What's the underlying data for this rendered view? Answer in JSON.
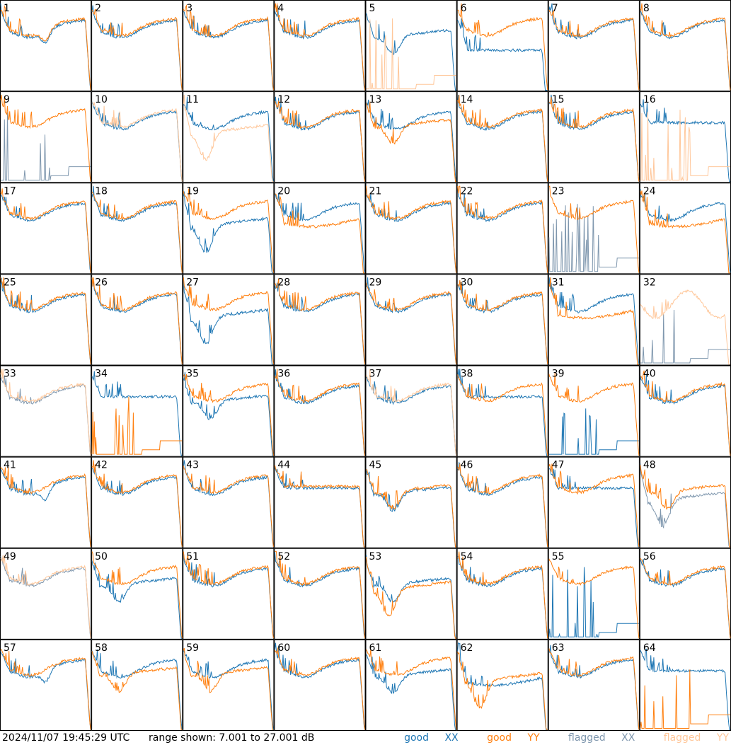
{
  "chart_data": {
    "type": "line",
    "layout": "small-multiples-8x8",
    "panels": [
      {
        "label": "1",
        "xx": "good",
        "yy": "good",
        "xx_shape": "dip",
        "yy_shape": "dip"
      },
      {
        "label": "2",
        "xx": "good",
        "yy": "good",
        "xx_shape": "normal",
        "yy_shape": "normal"
      },
      {
        "label": "3",
        "xx": "good",
        "yy": "good",
        "xx_shape": "normal",
        "yy_shape": "normal"
      },
      {
        "label": "4",
        "xx": "good",
        "yy": "good",
        "xx_shape": "normal",
        "yy_shape": "normal"
      },
      {
        "label": "5",
        "xx": "good",
        "yy": "flagged",
        "xx_shape": "valley",
        "yy_shape": "dead"
      },
      {
        "label": "6",
        "xx": "good",
        "yy": "good",
        "xx_shape": "lowflat",
        "yy_shape": "normal"
      },
      {
        "label": "7",
        "xx": "good",
        "yy": "good",
        "xx_shape": "normal",
        "yy_shape": "normal"
      },
      {
        "label": "8",
        "xx": "good",
        "yy": "good",
        "xx_shape": "normal",
        "yy_shape": "normal"
      },
      {
        "label": "9",
        "xx": "flagged",
        "yy": "good",
        "xx_shape": "dead",
        "yy_shape": "normal"
      },
      {
        "label": "10",
        "xx": "good",
        "yy": "flagged",
        "xx_shape": "normal",
        "yy_shape": "normal"
      },
      {
        "label": "11",
        "xx": "good",
        "yy": "flagged",
        "xx_shape": "normal",
        "yy_shape": "valleydeep"
      },
      {
        "label": "12",
        "xx": "good",
        "yy": "good",
        "xx_shape": "normal",
        "yy_shape": "normal"
      },
      {
        "label": "13",
        "xx": "good",
        "yy": "good",
        "xx_shape": "normal",
        "yy_shape": "valley"
      },
      {
        "label": "14",
        "xx": "good",
        "yy": "good",
        "xx_shape": "normal",
        "yy_shape": "normal"
      },
      {
        "label": "15",
        "xx": "good",
        "yy": "good",
        "xx_shape": "normal",
        "yy_shape": "normal"
      },
      {
        "label": "16",
        "xx": "good",
        "yy": "flagged",
        "xx_shape": "flat",
        "yy_shape": "dead"
      },
      {
        "label": "17",
        "xx": "good",
        "yy": "good",
        "xx_shape": "normal",
        "yy_shape": "normal"
      },
      {
        "label": "18",
        "xx": "good",
        "yy": "good",
        "xx_shape": "normal",
        "yy_shape": "normal"
      },
      {
        "label": "19",
        "xx": "good",
        "yy": "good",
        "xx_shape": "valleydeep",
        "yy_shape": "normal"
      },
      {
        "label": "20",
        "xx": "good",
        "yy": "good",
        "xx_shape": "normal",
        "yy_shape": "low"
      },
      {
        "label": "21",
        "xx": "good",
        "yy": "good",
        "xx_shape": "normal",
        "yy_shape": "normal"
      },
      {
        "label": "22",
        "xx": "good",
        "yy": "good",
        "xx_shape": "normal",
        "yy_shape": "normal"
      },
      {
        "label": "23",
        "xx": "flagged",
        "yy": "good",
        "xx_shape": "dead",
        "yy_shape": "normal"
      },
      {
        "label": "24",
        "xx": "good",
        "yy": "good",
        "xx_shape": "normal",
        "yy_shape": "low"
      },
      {
        "label": "25",
        "xx": "good",
        "yy": "good",
        "xx_shape": "normal",
        "yy_shape": "normal"
      },
      {
        "label": "26",
        "xx": "good",
        "yy": "good",
        "xx_shape": "normal",
        "yy_shape": "normal"
      },
      {
        "label": "27",
        "xx": "good",
        "yy": "good",
        "xx_shape": "valleydeep",
        "yy_shape": "normal"
      },
      {
        "label": "28",
        "xx": "good",
        "yy": "good",
        "xx_shape": "normal",
        "yy_shape": "normal"
      },
      {
        "label": "29",
        "xx": "good",
        "yy": "good",
        "xx_shape": "normal",
        "yy_shape": "normal"
      },
      {
        "label": "30",
        "xx": "good",
        "yy": "good",
        "xx_shape": "normal",
        "yy_shape": "normal"
      },
      {
        "label": "31",
        "xx": "good",
        "yy": "good",
        "xx_shape": "normal",
        "yy_shape": "low"
      },
      {
        "label": "32",
        "xx": "flagged",
        "yy": "flagged",
        "xx_shape": "dead",
        "yy_shape": "noisy"
      },
      {
        "label": "33",
        "xx": "flagged",
        "yy": "flagged",
        "xx_shape": "normal",
        "yy_shape": "normal"
      },
      {
        "label": "34",
        "xx": "good",
        "yy": "good",
        "xx_shape": "flat",
        "yy_shape": "dead"
      },
      {
        "label": "35",
        "xx": "good",
        "yy": "good",
        "xx_shape": "valley",
        "yy_shape": "normal"
      },
      {
        "label": "36",
        "xx": "good",
        "yy": "good",
        "xx_shape": "normal",
        "yy_shape": "normal"
      },
      {
        "label": "37",
        "xx": "good",
        "yy": "flagged",
        "xx_shape": "normal",
        "yy_shape": "normal"
      },
      {
        "label": "38",
        "xx": "good",
        "yy": "good",
        "xx_shape": "flat",
        "yy_shape": "normal"
      },
      {
        "label": "39",
        "xx": "good",
        "yy": "good",
        "xx_shape": "dead",
        "yy_shape": "normal"
      },
      {
        "label": "40",
        "xx": "good",
        "yy": "good",
        "xx_shape": "normal",
        "yy_shape": "normal"
      },
      {
        "label": "41",
        "xx": "good",
        "yy": "good",
        "xx_shape": "dip",
        "yy_shape": "normal"
      },
      {
        "label": "42",
        "xx": "good",
        "yy": "good",
        "xx_shape": "normal",
        "yy_shape": "normal"
      },
      {
        "label": "43",
        "xx": "good",
        "yy": "good",
        "xx_shape": "normal",
        "yy_shape": "normal"
      },
      {
        "label": "44",
        "xx": "good",
        "yy": "good",
        "xx_shape": "flat",
        "yy_shape": "flat"
      },
      {
        "label": "45",
        "xx": "good",
        "yy": "good",
        "xx_shape": "valley",
        "yy_shape": "valley"
      },
      {
        "label": "46",
        "xx": "good",
        "yy": "good",
        "xx_shape": "normal",
        "yy_shape": "normal"
      },
      {
        "label": "47",
        "xx": "good",
        "yy": "good",
        "xx_shape": "flat",
        "yy_shape": "normal"
      },
      {
        "label": "48",
        "xx": "flagged",
        "yy": "good",
        "xx_shape": "valleydeep",
        "yy_shape": "valley"
      },
      {
        "label": "49",
        "xx": "flagged",
        "yy": "flagged",
        "xx_shape": "normal",
        "yy_shape": "normal"
      },
      {
        "label": "50",
        "xx": "good",
        "yy": "good",
        "xx_shape": "valley",
        "yy_shape": "normal"
      },
      {
        "label": "51",
        "xx": "good",
        "yy": "good",
        "xx_shape": "normal",
        "yy_shape": "normal"
      },
      {
        "label": "52",
        "xx": "good",
        "yy": "good",
        "xx_shape": "normal",
        "yy_shape": "normal"
      },
      {
        "label": "53",
        "xx": "good",
        "yy": "good",
        "xx_shape": "valley",
        "yy_shape": "valleydeep"
      },
      {
        "label": "54",
        "xx": "good",
        "yy": "good",
        "xx_shape": "normal",
        "yy_shape": "normal"
      },
      {
        "label": "55",
        "xx": "good",
        "yy": "good",
        "xx_shape": "dead",
        "yy_shape": "normal"
      },
      {
        "label": "56",
        "xx": "good",
        "yy": "good",
        "xx_shape": "normal",
        "yy_shape": "normal"
      },
      {
        "label": "57",
        "xx": "good",
        "yy": "good",
        "xx_shape": "dip",
        "yy_shape": "normal"
      },
      {
        "label": "58",
        "xx": "good",
        "yy": "good",
        "xx_shape": "normal",
        "yy_shape": "valley"
      },
      {
        "label": "59",
        "xx": "good",
        "yy": "good",
        "xx_shape": "normal",
        "yy_shape": "valley"
      },
      {
        "label": "60",
        "xx": "good",
        "yy": "good",
        "xx_shape": "normal",
        "yy_shape": "normal"
      },
      {
        "label": "61",
        "xx": "good",
        "yy": "good",
        "xx_shape": "valley",
        "yy_shape": "normal"
      },
      {
        "label": "62",
        "xx": "good",
        "yy": "good",
        "xx_shape": "low",
        "yy_shape": "valleydeep"
      },
      {
        "label": "63",
        "xx": "good",
        "yy": "good",
        "xx_shape": "normal",
        "yy_shape": "normal"
      },
      {
        "label": "64",
        "xx": "good",
        "yy": "good",
        "xx_shape": "flat",
        "yy_shape": "dead"
      }
    ]
  },
  "footer": {
    "timestamp": "2024/11/07 19:45:29 UTC",
    "range": "range shown: 7.001 to 27.001 dB"
  },
  "legend": {
    "good_prefix": "good",
    "flagged_prefix": "flagged",
    "xx": "XX",
    "yy": "YY"
  },
  "colors": {
    "good_xx": "#1f77b4",
    "good_yy": "#ff7f0e",
    "flagged_xx": "#7f97ae",
    "flagged_yy": "#ffc79a"
  }
}
